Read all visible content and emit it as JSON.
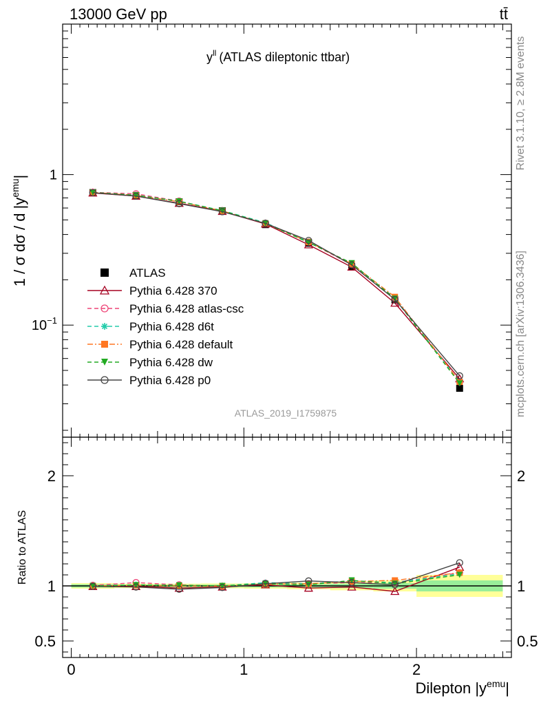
{
  "header": {
    "energy_label": "13000 GeV pp",
    "process_label": "tt̄",
    "side_label_top": "Rivet 3.1.10, ≥ 2.8M events",
    "side_label_bottom": "mcplots.cern.ch [arXiv:1306.3436]"
  },
  "chart_data": [
    {
      "type": "line",
      "panel": "main",
      "title": "y^ll (ATLAS dileptonic ttbar)",
      "ylabel": "1 / σ dσ / d |y^emu|",
      "watermark": "ATLAS_2019_I1759875",
      "yscale": "log",
      "ylim": [
        0.018,
        10
      ],
      "xlim": [
        -0.05,
        2.55
      ],
      "y_tick_labels": [
        "10^-1",
        "1"
      ],
      "x": [
        0.125,
        0.375,
        0.625,
        0.875,
        1.125,
        1.375,
        1.625,
        1.875,
        2.25
      ],
      "x_bins": [
        [
          0,
          0.25
        ],
        [
          0.25,
          0.5
        ],
        [
          0.5,
          0.75
        ],
        [
          0.75,
          1.0
        ],
        [
          1.0,
          1.25
        ],
        [
          1.25,
          1.5
        ],
        [
          1.5,
          1.75
        ],
        [
          1.75,
          2.0
        ],
        [
          2.0,
          2.5
        ]
      ],
      "legend": "left-middle",
      "series": [
        {
          "name": "ATLAS",
          "color": "#000000",
          "marker": "filled-square",
          "line": "none",
          "values": [
            0.76,
            0.725,
            0.66,
            0.575,
            0.465,
            0.35,
            0.245,
            0.147,
            0.038
          ]
        },
        {
          "name": "Pythia 6.428 370",
          "color": "#a50021",
          "marker": "open-triangle",
          "line": "solid",
          "values": [
            0.755,
            0.72,
            0.645,
            0.57,
            0.47,
            0.342,
            0.243,
            0.14,
            0.044
          ]
        },
        {
          "name": "Pythia 6.428 atlas-csc",
          "color": "#ee4477",
          "marker": "open-circle",
          "line": "dashed",
          "values": [
            0.763,
            0.745,
            0.667,
            0.572,
            0.476,
            0.356,
            0.252,
            0.152,
            0.042
          ]
        },
        {
          "name": "Pythia 6.428 d6t",
          "color": "#22ccaa",
          "marker": "star",
          "line": "dashed",
          "values": [
            0.762,
            0.73,
            0.665,
            0.577,
            0.479,
            0.357,
            0.256,
            0.151,
            0.042
          ]
        },
        {
          "name": "Pythia 6.428 default",
          "color": "#ff7722",
          "marker": "filled-square",
          "line": "dashdot",
          "values": [
            0.762,
            0.728,
            0.661,
            0.574,
            0.473,
            0.357,
            0.255,
            0.154,
            0.042
          ]
        },
        {
          "name": "Pythia 6.428 dw",
          "color": "#22aa22",
          "marker": "filled-down-triangle",
          "line": "dashed",
          "values": [
            0.761,
            0.729,
            0.664,
            0.575,
            0.475,
            0.354,
            0.258,
            0.15,
            0.041
          ]
        },
        {
          "name": "Pythia 6.428 p0",
          "color": "#444444",
          "marker": "open-circle",
          "line": "solid",
          "values": [
            0.758,
            0.72,
            0.641,
            0.567,
            0.474,
            0.365,
            0.251,
            0.148,
            0.046
          ]
        }
      ]
    },
    {
      "type": "line",
      "panel": "ratio",
      "ylabel": "Ratio to ATLAS",
      "xlabel": "Dilepton |y^emu|",
      "ylim": [
        0.35,
        2.35
      ],
      "xlim": [
        -0.05,
        2.55
      ],
      "y_tick_labels": [
        "0.5",
        "1",
        "2"
      ],
      "x_tick_labels": [
        "0",
        "1",
        "2"
      ],
      "x": [
        0.125,
        0.375,
        0.625,
        0.875,
        1.125,
        1.375,
        1.625,
        1.875,
        2.25
      ],
      "uncertainty_band_inner": [
        0.015,
        0.012,
        0.012,
        0.012,
        0.014,
        0.016,
        0.02,
        0.025,
        0.05
      ],
      "uncertainty_band_outer": [
        0.025,
        0.02,
        0.02,
        0.022,
        0.025,
        0.03,
        0.04,
        0.05,
        0.1
      ],
      "series": [
        {
          "name": "Pythia 6.428 370",
          "color": "#a50021",
          "values": [
            0.995,
            0.995,
            0.98,
            0.99,
            1.01,
            0.98,
            0.99,
            0.95,
            1.17
          ]
        },
        {
          "name": "Pythia 6.428 atlas-csc",
          "color": "#ee4477",
          "values": [
            1.005,
            1.03,
            1.01,
            0.995,
            1.025,
            1.02,
            1.03,
            1.03,
            1.12
          ]
        },
        {
          "name": "Pythia 6.428 d6t",
          "color": "#22ccaa",
          "values": [
            1.0,
            1.01,
            1.005,
            1.0,
            1.03,
            1.02,
            1.045,
            1.03,
            1.11
          ]
        },
        {
          "name": "Pythia 6.428 default",
          "color": "#ff7722",
          "values": [
            1.0,
            1.005,
            1.0,
            0.998,
            1.015,
            1.02,
            1.04,
            1.05,
            1.12
          ]
        },
        {
          "name": "Pythia 6.428 dw",
          "color": "#22aa22",
          "values": [
            1.0,
            1.007,
            1.005,
            1.0,
            1.02,
            1.01,
            1.05,
            1.02,
            1.1
          ]
        },
        {
          "name": "Pythia 6.428 p0",
          "color": "#444444",
          "values": [
            0.995,
            0.99,
            0.97,
            0.985,
            1.02,
            1.045,
            1.03,
            1.01,
            1.21
          ]
        }
      ]
    }
  ]
}
